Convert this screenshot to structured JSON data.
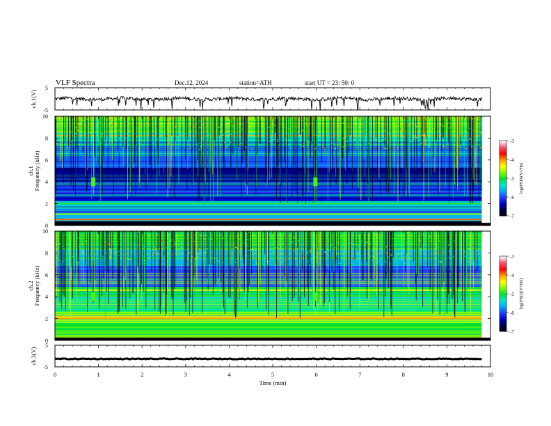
{
  "header": {
    "title": "VLF  Spectra",
    "date": "Dec.12, 2024",
    "station": "station=ATH",
    "start": "start  UT  =   23: 50: 0"
  },
  "chart_data": [
    {
      "type": "line",
      "panel": "ch1-waveform",
      "ylabel": "ch.1(V)",
      "yticks": [
        "5",
        "-5"
      ],
      "ylim": [
        -5,
        5
      ],
      "xlim": [
        0,
        10
      ],
      "baseline": 0
    },
    {
      "type": "heatmap",
      "panel": "ch1-spectrogram",
      "ylabel_lines": [
        "ch.1",
        "Frequency  (kHz)"
      ],
      "yticks": [
        "0",
        "2",
        "4",
        "6",
        "8",
        "10"
      ],
      "ylim": [
        0,
        10
      ],
      "xlim": [
        0,
        9.8
      ],
      "colorbar": {
        "label": "log(PSD)(V²/Hz)",
        "ticks": [
          "-3",
          "-4",
          "-5",
          "-6",
          "-7"
        ],
        "range": [
          -7,
          -3
        ],
        "colors": [
          "#ffffff",
          "#ff4f6a",
          "#ff0000",
          "#ff9a00",
          "#ffff00",
          "#7dff00",
          "#00e030",
          "#00e8d0",
          "#00a8ff",
          "#1f3cff",
          "#0000c0",
          "#00004a",
          "#000000"
        ]
      },
      "lines": [
        {
          "freq_khz": 0.55,
          "level": -3.9
        },
        {
          "freq_khz": 1.05,
          "level": -4.6
        },
        {
          "freq_khz": 2.0,
          "level": -4.9
        },
        {
          "freq_khz": 6.6,
          "level": -5.4
        }
      ]
    },
    {
      "type": "heatmap",
      "panel": "ch2-spectrogram",
      "ylabel_lines": [
        "ch.2",
        "Frequency  (kHz)"
      ],
      "yticks": [
        "0",
        "2",
        "4",
        "6",
        "8",
        "10"
      ],
      "ylim": [
        0,
        10
      ],
      "xlim": [
        0,
        9.8
      ],
      "colorbar": {
        "label": "log(PSD)(V²/Hz)",
        "ticks": [
          "-3",
          "-4",
          "-5",
          "-6",
          "-7"
        ],
        "range": [
          -7,
          -3
        ]
      },
      "lines": [
        {
          "freq_khz": 2.0,
          "level": -4.0
        },
        {
          "freq_khz": 2.15,
          "level": -4.2
        },
        {
          "freq_khz": 4.6,
          "level": -4.3
        },
        {
          "freq_khz": 1.2,
          "level": -4.8
        }
      ]
    },
    {
      "type": "line",
      "panel": "ch3-waveform",
      "ylabel": "ch.3(V)",
      "yticks": [
        "5",
        "-5"
      ],
      "ylim": [
        -5,
        5
      ],
      "xlim": [
        0,
        10
      ],
      "baseline": -1.3,
      "xlabel": "Time  (min)",
      "xticks": [
        "0",
        "1",
        "2",
        "3",
        "4",
        "5",
        "6",
        "7",
        "8",
        "9",
        "10"
      ]
    }
  ]
}
